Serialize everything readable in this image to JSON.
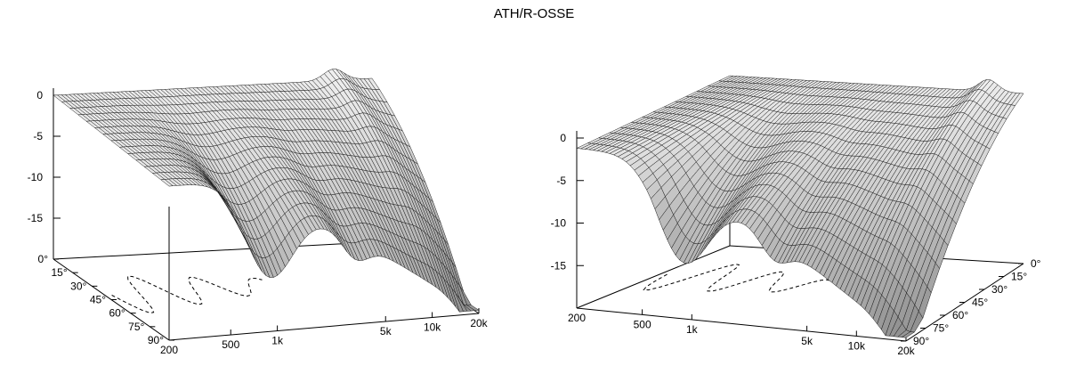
{
  "title": "ATH/R-OSSE",
  "chart_data": [
    {
      "type": "surface",
      "title": "ATH/R-OSSE",
      "x_axis": {
        "label": "",
        "scale": "log",
        "ticks": [
          "200",
          "500",
          "1k",
          "5k",
          "10k",
          "20k"
        ],
        "range": [
          200,
          20000
        ]
      },
      "y_axis": {
        "label": "",
        "ticks": [
          "0°",
          "15°",
          "30°",
          "45°",
          "60°",
          "75°",
          "90°"
        ],
        "range": [
          0,
          90
        ]
      },
      "z_axis": {
        "label": "",
        "ticks": [
          "0",
          "-5",
          "-10",
          "-15"
        ],
        "range": [
          -20,
          2
        ]
      },
      "base_contour": "dashed",
      "shading": "grayscale",
      "grid": true
    },
    {
      "type": "surface",
      "x_axis": {
        "label": "",
        "scale": "log",
        "ticks": [
          "200",
          "500",
          "1k",
          "5k",
          "10k",
          "20k"
        ],
        "range": [
          200,
          20000
        ]
      },
      "y_axis": {
        "label": "",
        "ticks": [
          "0°",
          "15°",
          "30°",
          "45°",
          "60°",
          "75°",
          "90°"
        ],
        "range": [
          0,
          90
        ]
      },
      "z_axis": {
        "label": "",
        "ticks": [
          "0",
          "-5",
          "-10",
          "-15"
        ],
        "range": [
          -20,
          2
        ]
      },
      "base_contour": "dashed",
      "shading": "grayscale",
      "grid": true
    }
  ]
}
